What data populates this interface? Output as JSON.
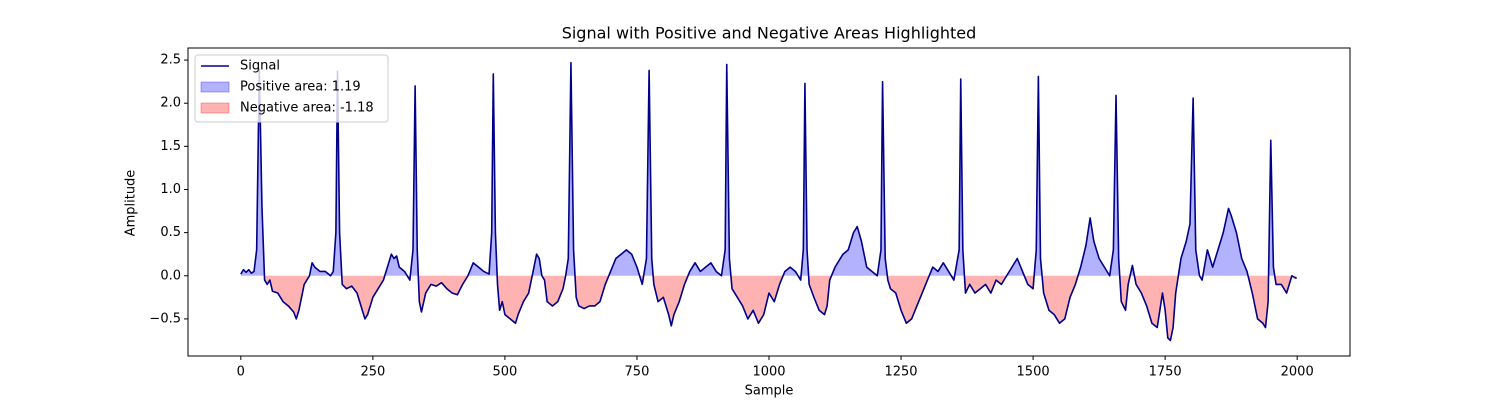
{
  "chart_data": {
    "type": "line",
    "title": "Signal with Positive and Negative Areas Highlighted",
    "x_label": "Sample",
    "y_label": "Amplitude",
    "x": [
      0,
      5,
      10,
      15,
      20,
      25,
      30,
      35,
      40,
      45,
      50,
      55,
      60,
      70,
      80,
      90,
      100,
      105,
      110,
      115,
      120,
      125,
      130,
      135,
      140,
      150,
      160,
      170,
      175,
      180,
      183,
      187,
      192,
      200,
      210,
      220,
      230,
      235,
      240,
      250,
      260,
      270,
      280,
      285,
      290,
      295,
      300,
      310,
      320,
      326,
      330,
      334,
      338,
      342,
      350,
      360,
      370,
      380,
      390,
      400,
      410,
      420,
      430,
      440,
      450,
      460,
      470,
      475,
      478,
      482,
      486,
      490,
      495,
      500,
      510,
      520,
      525,
      535,
      545,
      550,
      555,
      560,
      565,
      570,
      575,
      580,
      590,
      600,
      610,
      615,
      620,
      625,
      630,
      635,
      640,
      650,
      660,
      670,
      680,
      690,
      700,
      710,
      720,
      730,
      740,
      750,
      760,
      768,
      773,
      778,
      782,
      790,
      800,
      810,
      815,
      820,
      830,
      840,
      850,
      860,
      870,
      880,
      890,
      900,
      910,
      917,
      920,
      925,
      930,
      940,
      950,
      960,
      970,
      980,
      990,
      1000,
      1010,
      1020,
      1030,
      1040,
      1050,
      1060,
      1065,
      1068,
      1072,
      1076,
      1085,
      1095,
      1105,
      1110,
      1115,
      1125,
      1140,
      1150,
      1160,
      1167,
      1175,
      1185,
      1195,
      1205,
      1212,
      1215,
      1220,
      1225,
      1230,
      1240,
      1250,
      1260,
      1270,
      1280,
      1290,
      1300,
      1310,
      1320,
      1330,
      1340,
      1350,
      1360,
      1363,
      1367,
      1372,
      1380,
      1390,
      1400,
      1410,
      1420,
      1430,
      1440,
      1450,
      1460,
      1470,
      1480,
      1490,
      1500,
      1506,
      1510,
      1514,
      1520,
      1530,
      1540,
      1550,
      1560,
      1570,
      1580,
      1590,
      1600,
      1608,
      1615,
      1625,
      1635,
      1645,
      1652,
      1657,
      1662,
      1667,
      1675,
      1680,
      1688,
      1695,
      1705,
      1715,
      1725,
      1735,
      1745,
      1750,
      1755,
      1760,
      1765,
      1770,
      1780,
      1790,
      1797,
      1803,
      1808,
      1815,
      1820,
      1830,
      1840,
      1850,
      1860,
      1870,
      1875,
      1885,
      1895,
      1905,
      1915,
      1925,
      1935,
      1940,
      1945,
      1950,
      1955,
      1960,
      1970,
      1980,
      1990,
      1995,
      1999
    ],
    "series": [
      {
        "name": "Signal",
        "color": "#00008b",
        "values": [
          0.02,
          0.07,
          0.04,
          0.07,
          0.03,
          0.05,
          0.3,
          2.4,
          0.8,
          -0.05,
          -0.1,
          -0.05,
          -0.18,
          -0.2,
          -0.3,
          -0.35,
          -0.42,
          -0.5,
          -0.4,
          -0.25,
          -0.1,
          -0.05,
          0.0,
          0.15,
          0.1,
          0.05,
          0.05,
          0.0,
          0.05,
          0.5,
          2.37,
          0.5,
          -0.1,
          -0.15,
          -0.12,
          -0.2,
          -0.4,
          -0.5,
          -0.45,
          -0.25,
          -0.15,
          -0.05,
          0.15,
          0.25,
          0.2,
          0.23,
          0.1,
          0.05,
          -0.05,
          0.3,
          2.2,
          0.3,
          -0.3,
          -0.42,
          -0.2,
          -0.1,
          -0.12,
          -0.08,
          -0.15,
          -0.2,
          -0.22,
          -0.1,
          0.0,
          0.15,
          0.1,
          0.05,
          0.02,
          0.5,
          2.34,
          0.5,
          -0.1,
          -0.4,
          -0.3,
          -0.45,
          -0.5,
          -0.55,
          -0.45,
          -0.3,
          -0.2,
          -0.05,
          0.1,
          0.25,
          0.2,
          0.0,
          -0.05,
          -0.3,
          -0.35,
          -0.3,
          -0.15,
          0.0,
          0.2,
          2.47,
          0.3,
          -0.25,
          -0.35,
          -0.38,
          -0.35,
          -0.35,
          -0.3,
          -0.1,
          0.05,
          0.2,
          0.25,
          0.3,
          0.25,
          0.1,
          -0.1,
          0.2,
          2.38,
          0.2,
          -0.1,
          -0.3,
          -0.25,
          -0.45,
          -0.58,
          -0.45,
          -0.3,
          -0.1,
          0.05,
          0.15,
          0.05,
          0.1,
          0.15,
          0.05,
          0.0,
          0.3,
          2.45,
          0.2,
          -0.15,
          -0.25,
          -0.35,
          -0.5,
          -0.4,
          -0.55,
          -0.45,
          -0.2,
          -0.3,
          -0.1,
          0.05,
          0.1,
          0.05,
          -0.05,
          0.3,
          2.23,
          0.3,
          -0.1,
          -0.25,
          -0.4,
          -0.45,
          -0.35,
          -0.05,
          0.1,
          0.25,
          0.3,
          0.5,
          0.57,
          0.4,
          0.1,
          0.05,
          0.0,
          0.3,
          2.25,
          0.2,
          -0.05,
          -0.15,
          -0.2,
          -0.4,
          -0.55,
          -0.5,
          -0.35,
          -0.2,
          -0.05,
          0.1,
          0.05,
          0.15,
          0.05,
          -0.05,
          0.3,
          2.28,
          0.3,
          -0.2,
          -0.1,
          -0.2,
          -0.15,
          -0.1,
          -0.2,
          -0.05,
          -0.1,
          0.0,
          0.1,
          0.2,
          0.05,
          -0.1,
          -0.15,
          0.3,
          2.31,
          0.2,
          -0.2,
          -0.4,
          -0.45,
          -0.55,
          -0.5,
          -0.25,
          -0.1,
          0.1,
          0.35,
          0.67,
          0.4,
          0.2,
          0.1,
          0.0,
          0.3,
          2.09,
          0.2,
          -0.3,
          -0.4,
          -0.1,
          0.12,
          -0.1,
          -0.2,
          -0.35,
          -0.55,
          -0.6,
          -0.2,
          -0.4,
          -0.72,
          -0.75,
          -0.6,
          -0.2,
          0.2,
          0.4,
          0.6,
          2.06,
          0.3,
          0.0,
          -0.05,
          0.3,
          0.1,
          0.3,
          0.5,
          0.78,
          0.7,
          0.5,
          0.2,
          0.05,
          -0.2,
          -0.5,
          -0.55,
          -0.6,
          -0.3,
          1.57,
          0.1,
          -0.1,
          -0.1,
          -0.2,
          0.0,
          -0.02,
          -0.03
        ]
      }
    ],
    "fills": [
      {
        "name": "Positive area: 1.19",
        "color": "#0000ff",
        "side": "positive"
      },
      {
        "name": "Negative area: -1.18",
        "color": "#ff0000",
        "side": "negative"
      }
    ],
    "xlim": [
      -100,
      2100
    ],
    "ylim": [
      -0.93,
      2.64
    ],
    "xticks": [
      0,
      250,
      500,
      750,
      1000,
      1250,
      1500,
      1750,
      2000
    ],
    "yticks": [
      {
        "value": -0.5,
        "label": "−0.5"
      },
      {
        "value": 0,
        "label": "0.0"
      },
      {
        "value": 0.5,
        "label": "0.5"
      },
      {
        "value": 1,
        "label": "1.0"
      },
      {
        "value": 1.5,
        "label": "1.5"
      },
      {
        "value": 2,
        "label": "2.0"
      },
      {
        "value": 2.5,
        "label": "2.5"
      }
    ],
    "legend": "upper left"
  }
}
